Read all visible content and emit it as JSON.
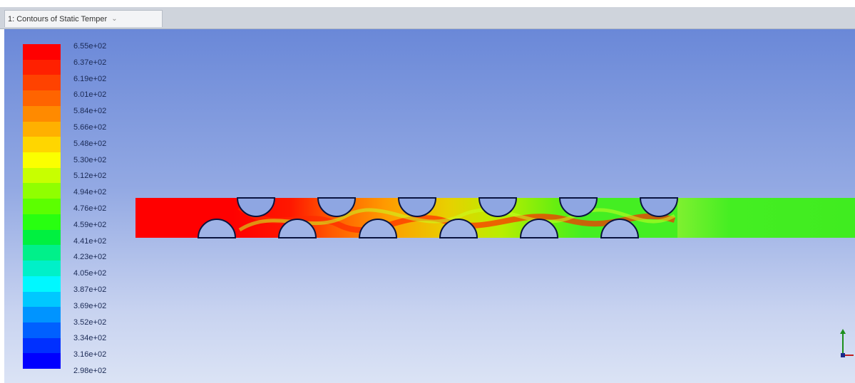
{
  "tab": {
    "title": "1: Contours of Static Temper",
    "chevron_icon": "chevron-down-icon"
  },
  "legend": {
    "labels": [
      "6.55e+02",
      "6.37e+02",
      "6.19e+02",
      "6.01e+02",
      "5.84e+02",
      "5.66e+02",
      "5.48e+02",
      "5.30e+02",
      "5.12e+02",
      "4.94e+02",
      "4.76e+02",
      "4.59e+02",
      "4.41e+02",
      "4.23e+02",
      "4.05e+02",
      "3.87e+02",
      "3.69e+02",
      "3.52e+02",
      "3.34e+02",
      "3.16e+02",
      "2.98e+02"
    ],
    "colors": [
      "#ff0000",
      "#ff2000",
      "#ff4200",
      "#ff6400",
      "#ff8a00",
      "#ffb000",
      "#ffd600",
      "#fbff00",
      "#c8ff00",
      "#90ff00",
      "#5cff00",
      "#28ff10",
      "#00f040",
      "#00f08a",
      "#00f0c8",
      "#00f8ff",
      "#00c8ff",
      "#0094ff",
      "#0060ff",
      "#0030ff",
      "#0000ff"
    ]
  },
  "colors": {
    "hot": "#ff0000",
    "cool": "#44ee22",
    "background_top": "#6a88d8",
    "background_bottom": "#dbe3f5"
  }
}
